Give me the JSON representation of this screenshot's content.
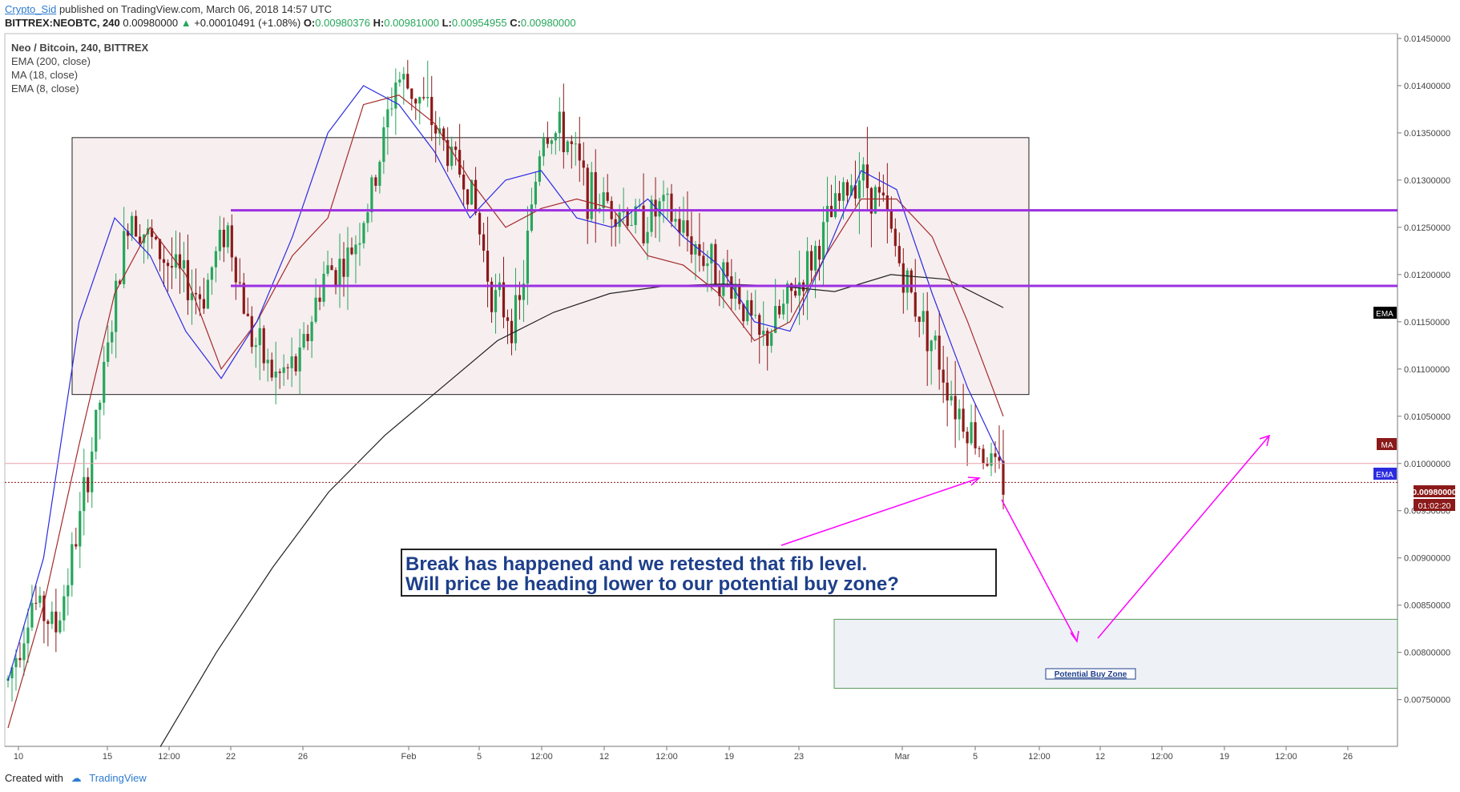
{
  "header": {
    "author": "Crypto_Sid",
    "published": "published on TradingView.com, March 06, 2018 14:57 UTC",
    "symbol": "BITTREX:NEOBTC, 240",
    "price": "0.00980000",
    "change": "+0.00010491 (+1.08%)",
    "open_label": "O:",
    "open": "0.00980376",
    "high_label": "H:",
    "high": "0.00981000",
    "low_label": "L:",
    "low": "0.00954955",
    "close_label": "C:",
    "close": "0.00980000"
  },
  "legend": {
    "title": "Neo / Bitcoin, 240, BITTREX",
    "ind1": "EMA (200, close)",
    "ind2": "MA (18, close)",
    "ind3": "EMA (8, close)"
  },
  "badges": {
    "ema200": "EMA",
    "ma18": "MA",
    "ema8": "EMA",
    "price": "0.00980000",
    "countdown": "01:02:20"
  },
  "annotation": {
    "line1": "Break has happened and we retested that fib level.",
    "line2": "Will price be heading lower to our potential buy zone?",
    "zone_label": "Potential Buy Zone"
  },
  "footer": {
    "created": "Created with",
    "brand": "TradingView"
  },
  "colors": {
    "up": "#26a65b",
    "down": "#8b1a1a",
    "ema200": "#222222",
    "ma18": "#a52a2a",
    "ema8": "#2b2be0",
    "level": "#9b30e0",
    "arrow": "#ff00ff",
    "range_box": "#f7eef0",
    "buy_zone": "#eef2f7",
    "annotation_text": "#1e3f8a"
  },
  "chart_data": {
    "type": "candlestick",
    "y_min": 0.0072,
    "y_max": 0.0145,
    "y_ticks": [
      "0.01450000",
      "0.01400000",
      "0.01350000",
      "0.01300000",
      "0.01250000",
      "0.01200000",
      "0.01150000",
      "0.01100000",
      "0.01050000",
      "0.01000000",
      "0.00950000",
      "0.00900000",
      "0.00850000",
      "0.00800000",
      "0.00750000"
    ],
    "x_ticks": [
      "10",
      "15",
      "12:00",
      "22",
      "26",
      "Feb",
      "5",
      "12:00",
      "12",
      "12:00",
      "19",
      "23",
      "Mar",
      "5",
      "12:00",
      "12",
      "12:00",
      "19",
      "12:00",
      "26"
    ],
    "levels": [
      0.01268,
      0.01188
    ],
    "range_box": {
      "high": 0.01345,
      "low": 0.01073
    },
    "buy_zone": {
      "high": 0.00835,
      "low": 0.00762
    },
    "reference_line": 0.01,
    "last_price": 0.0098,
    "path_points": [
      [
        0.0076,
        0.0078
      ],
      [
        0.0086,
        0.0085
      ],
      [
        0.0082,
        0.0083
      ],
      [
        0.0091,
        0.0098
      ],
      [
        0.0105,
        0.0115
      ],
      [
        0.012,
        0.0134
      ],
      [
        0.012,
        0.0126
      ],
      [
        0.0125,
        0.0115
      ],
      [
        0.011,
        0.0125
      ],
      [
        0.0126,
        0.0125
      ],
      [
        0.0115,
        0.0112
      ],
      [
        0.011,
        0.0108
      ],
      [
        0.0109,
        0.0112
      ],
      [
        0.0116,
        0.0124
      ],
      [
        0.012,
        0.0123
      ],
      [
        0.0125,
        0.0132
      ],
      [
        0.014,
        0.0142
      ],
      [
        0.0139,
        0.0138
      ],
      [
        0.0135,
        0.0132
      ],
      [
        0.0131,
        0.0128
      ],
      [
        0.012,
        0.0115
      ],
      [
        0.0112,
        0.0118
      ],
      [
        0.0129,
        0.0142
      ],
      [
        0.0134,
        0.0135
      ],
      [
        0.0129,
        0.0127
      ],
      [
        0.0127,
        0.0128
      ],
      [
        0.0126,
        0.0125
      ],
      [
        0.0128,
        0.0126
      ],
      [
        0.0125,
        0.0123
      ],
      [
        0.012,
        0.0122
      ],
      [
        0.012,
        0.0117
      ],
      [
        0.0112,
        0.0113
      ],
      [
        0.0115,
        0.0118
      ],
      [
        0.012,
        0.0122
      ],
      [
        0.0124,
        0.0129
      ],
      [
        0.0132,
        0.013
      ],
      [
        0.0129,
        0.0126
      ],
      [
        0.012,
        0.0118
      ],
      [
        0.0115,
        0.0112
      ],
      [
        0.0108,
        0.0105
      ],
      [
        0.0103,
        0.0101
      ],
      [
        0.0098,
        0.0098
      ]
    ],
    "series": [
      {
        "name": "EMA (200, close)",
        "values": [
          0.007,
          0.008,
          0.0089,
          0.0097,
          0.0103,
          0.0108,
          0.0113,
          0.0116,
          0.0118,
          0.01188,
          0.0119,
          0.01188,
          0.01182,
          0.012,
          0.01195,
          0.01165
        ]
      },
      {
        "name": "MA (18, close)",
        "values": [
          0.0072,
          0.0085,
          0.0102,
          0.0118,
          0.0125,
          0.012,
          0.011,
          0.0115,
          0.0122,
          0.0126,
          0.0138,
          0.0139,
          0.0136,
          0.013,
          0.0125,
          0.0127,
          0.0128,
          0.0127,
          0.0122,
          0.0121,
          0.0118,
          0.0113,
          0.0115,
          0.0122,
          0.0128,
          0.0128,
          0.0124,
          0.0115,
          0.0105
        ]
      },
      {
        "name": "EMA (8, close)",
        "values": [
          0.0077,
          0.009,
          0.0115,
          0.0126,
          0.0122,
          0.0114,
          0.0109,
          0.0115,
          0.0124,
          0.0135,
          0.014,
          0.0138,
          0.0133,
          0.0126,
          0.013,
          0.0131,
          0.0126,
          0.0125,
          0.0128,
          0.0124,
          0.0121,
          0.0115,
          0.0114,
          0.0122,
          0.0131,
          0.0129,
          0.0118,
          0.0108,
          0.01
        ]
      }
    ]
  }
}
